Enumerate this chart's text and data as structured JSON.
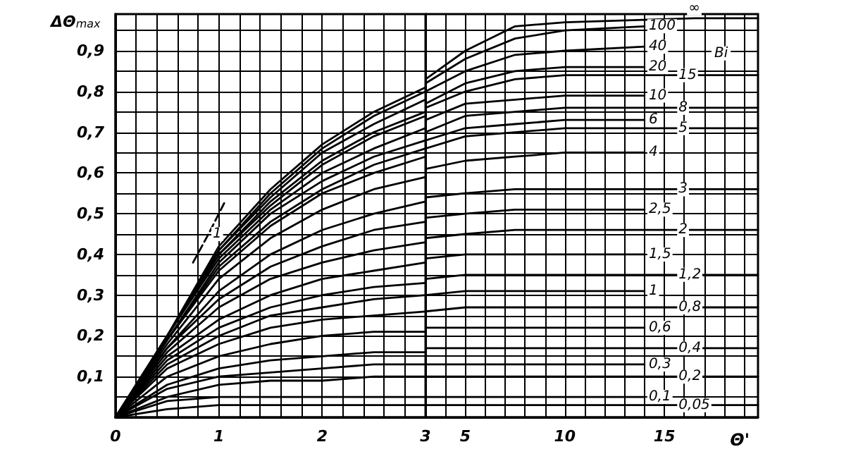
{
  "chart_data": [
    {
      "type": "line",
      "ylabel": "ΔΘ$_{max}$",
      "grid": true,
      "marker": "none",
      "line_style": "solid",
      "tick_labels": "xy",
      "xlim": [
        0,
        3
      ],
      "ylim": [
        0,
        0.99
      ],
      "xticks": [
        0,
        {
          "value": 0.2,
          "label": null
        },
        {
          "value": 0.4,
          "label": null
        },
        {
          "value": 0.6,
          "label": null
        },
        {
          "value": 0.8,
          "label": null
        },
        1,
        {
          "value": 1.2,
          "label": null
        },
        {
          "value": 1.4,
          "label": null
        },
        {
          "value": 1.6,
          "label": null
        },
        {
          "value": 1.8,
          "label": null
        },
        2,
        {
          "value": 2.2,
          "label": null
        },
        {
          "value": 2.4,
          "label": null
        },
        {
          "value": 2.6,
          "label": null
        },
        {
          "value": 2.8,
          "label": null
        },
        3
      ],
      "yticks": [
        {
          "value": 0,
          "label": null
        },
        {
          "value": 0.05,
          "label": null
        },
        {
          "value": 0.1,
          "label": "0,1"
        },
        {
          "value": 0.15,
          "label": null
        },
        {
          "value": 0.2,
          "label": "0,2"
        },
        {
          "value": 0.25,
          "label": null
        },
        {
          "value": 0.3,
          "label": "0,3"
        },
        {
          "value": 0.35,
          "label": null
        },
        {
          "value": 0.4,
          "label": "0,4"
        },
        {
          "value": 0.45,
          "label": null
        },
        {
          "value": 0.5,
          "label": "0,5"
        },
        {
          "value": 0.55,
          "label": null
        },
        {
          "value": 0.6,
          "label": "0,6"
        },
        {
          "value": 0.65,
          "label": null
        },
        {
          "value": 0.7,
          "label": "0,7"
        },
        {
          "value": 0.75,
          "label": null
        },
        {
          "value": 0.8,
          "label": "0,8"
        },
        {
          "value": 0.85,
          "label": null
        },
        {
          "value": 0.9,
          "label": "0,9"
        },
        {
          "value": 0.95,
          "label": null
        }
      ],
      "x": [
        0,
        0.5,
        1,
        1.5,
        2,
        2.5,
        3
      ],
      "series": [
        {
          "color": "#000000",
          "values": [
            0,
            0.2,
            0.42,
            0.56,
            0.67,
            0.75,
            0.81
          ]
        },
        {
          "color": "#000000",
          "values": [
            0,
            0.2,
            0.41,
            0.55,
            0.66,
            0.74,
            0.8
          ]
        },
        {
          "color": "#000000",
          "values": [
            0,
            0.2,
            0.41,
            0.54,
            0.65,
            0.72,
            0.78
          ]
        },
        {
          "color": "#000000",
          "values": [
            0,
            0.2,
            0.4,
            0.53,
            0.63,
            0.7,
            0.75
          ]
        },
        {
          "color": "#000000",
          "values": [
            0,
            0.2,
            0.4,
            0.52,
            0.62,
            0.69,
            0.74
          ]
        },
        {
          "color": "#000000",
          "values": [
            0,
            0.2,
            0.39,
            0.51,
            0.6,
            0.66,
            0.71
          ]
        },
        {
          "color": "#000000",
          "values": [
            0,
            0.19,
            0.38,
            0.5,
            0.58,
            0.64,
            0.68
          ]
        },
        {
          "color": "#000000",
          "values": [
            0,
            0.19,
            0.37,
            0.48,
            0.56,
            0.62,
            0.66
          ]
        },
        {
          "color": "#000000",
          "values": [
            0,
            0.19,
            0.36,
            0.47,
            0.55,
            0.6,
            0.64
          ]
        },
        {
          "color": "#000000",
          "values": [
            0,
            0.18,
            0.34,
            0.44,
            0.51,
            0.56,
            0.59
          ]
        },
        {
          "color": "#000000",
          "values": [
            0,
            0.17,
            0.31,
            0.4,
            0.46,
            0.5,
            0.53
          ]
        },
        {
          "color": "#000000",
          "values": [
            0,
            0.17,
            0.29,
            0.37,
            0.42,
            0.46,
            0.48
          ]
        },
        {
          "color": "#000000",
          "values": [
            0,
            0.16,
            0.27,
            0.34,
            0.38,
            0.41,
            0.43
          ]
        },
        {
          "color": "#000000",
          "values": [
            0,
            0.15,
            0.24,
            0.3,
            0.34,
            0.36,
            0.38
          ]
        },
        {
          "color": "#000000",
          "values": [
            0,
            0.14,
            0.22,
            0.27,
            0.3,
            0.32,
            0.33
          ]
        },
        {
          "color": "#000000",
          "values": [
            0,
            0.13,
            0.2,
            0.25,
            0.27,
            0.29,
            0.3
          ]
        },
        {
          "color": "#000000",
          "values": [
            0,
            0.12,
            0.18,
            0.22,
            0.24,
            0.25,
            0.26
          ]
        },
        {
          "color": "#000000",
          "values": [
            0,
            0.1,
            0.15,
            0.18,
            0.2,
            0.21,
            0.21
          ]
        },
        {
          "color": "#000000",
          "values": [
            0,
            0.08,
            0.12,
            0.14,
            0.15,
            0.16,
            0.16
          ]
        },
        {
          "color": "#000000",
          "values": [
            0,
            0.07,
            0.1,
            0.11,
            0.12,
            0.13,
            0.13
          ]
        },
        {
          "color": "#000000",
          "values": [
            0,
            0.05,
            0.08,
            0.09,
            0.09,
            0.1,
            0.1
          ]
        },
        {
          "color": "#000000",
          "values": [
            0,
            0.04,
            0.05,
            0.05,
            0.05,
            0.05,
            0.05
          ]
        },
        {
          "color": "#000000",
          "values": [
            0,
            0.02,
            0.03,
            0.03,
            0.03,
            0.03,
            0.03
          ]
        },
        {
          "name": "1",
          "color": "#000000",
          "line_style": "dashed",
          "x": [
            0.75,
            0.9,
            1.06
          ],
          "values": [
            0.38,
            0.45,
            0.53
          ]
        }
      ]
    },
    {
      "type": "line",
      "xlabel": "Θ'",
      "grid": true,
      "marker": "none",
      "line_style": "solid",
      "tick_labels": "x",
      "annotations": [
        "Bi"
      ],
      "xlim": [
        3,
        19.7
      ],
      "ylim": [
        0,
        0.99
      ],
      "xticks": [
        {
          "value": 4,
          "label": null
        },
        5,
        {
          "value": 6,
          "label": null
        },
        {
          "value": 7,
          "label": null
        },
        {
          "value": 8,
          "label": null
        },
        {
          "value": 9,
          "label": null
        },
        10,
        {
          "value": 11,
          "label": null
        },
        {
          "value": 12,
          "label": null
        },
        {
          "value": 13,
          "label": null
        },
        {
          "value": 14,
          "label": null
        },
        15,
        {
          "value": 16,
          "label": null
        },
        {
          "value": 17,
          "label": null
        },
        {
          "value": 18,
          "label": null
        },
        {
          "value": 19,
          "label": null
        }
      ],
      "yticks": [
        0,
        0.05,
        0.1,
        0.15,
        0.2,
        0.25,
        0.3,
        0.35,
        0.4,
        0.45,
        0.5,
        0.55,
        0.6,
        0.65,
        0.7,
        0.75,
        0.8,
        0.85,
        0.9,
        0.95
      ],
      "series": [
        {
          "name": "∞",
          "color": "#000000",
          "x": [
            3,
            5,
            7.5,
            10,
            16.5,
            19.7
          ],
          "values": [
            0.83,
            0.9,
            0.96,
            0.97,
            0.98,
            0.98
          ]
        },
        {
          "name": "100",
          "color": "#000000",
          "x": [
            3,
            5,
            7.5,
            10,
            14
          ],
          "values": [
            0.82,
            0.88,
            0.93,
            0.95,
            0.96
          ]
        },
        {
          "name": "40",
          "color": "#000000",
          "x": [
            3,
            5,
            7.5,
            10,
            14
          ],
          "values": [
            0.8,
            0.85,
            0.89,
            0.9,
            0.91
          ]
        },
        {
          "name": "20",
          "color": "#000000",
          "x": [
            3,
            5,
            7.5,
            10,
            14
          ],
          "values": [
            0.77,
            0.82,
            0.85,
            0.86,
            0.86
          ]
        },
        {
          "name": "15",
          "color": "#000000",
          "x": [
            3,
            5,
            7.5,
            10,
            15.5,
            19.7
          ],
          "values": [
            0.76,
            0.8,
            0.83,
            0.84,
            0.84,
            0.84
          ]
        },
        {
          "name": "10",
          "color": "#000000",
          "x": [
            3,
            5,
            7.5,
            10,
            14
          ],
          "values": [
            0.73,
            0.77,
            0.78,
            0.79,
            0.79
          ]
        },
        {
          "name": "8",
          "color": "#000000",
          "x": [
            3,
            5,
            7.5,
            10,
            15.5,
            19.7
          ],
          "values": [
            0.7,
            0.74,
            0.75,
            0.76,
            0.76,
            0.76
          ]
        },
        {
          "name": "6",
          "color": "#000000",
          "x": [
            3,
            5,
            7.5,
            10,
            14
          ],
          "values": [
            0.68,
            0.71,
            0.72,
            0.73,
            0.73
          ]
        },
        {
          "name": "5",
          "color": "#000000",
          "x": [
            3,
            5,
            7.5,
            10,
            15.5,
            19.7
          ],
          "values": [
            0.66,
            0.69,
            0.7,
            0.71,
            0.71,
            0.71
          ]
        },
        {
          "name": "4",
          "color": "#000000",
          "x": [
            3,
            5,
            7.5,
            10,
            14
          ],
          "values": [
            0.61,
            0.63,
            0.64,
            0.65,
            0.65
          ]
        },
        {
          "name": "3",
          "color": "#000000",
          "x": [
            3,
            5,
            7.5,
            10,
            15.5,
            19.7
          ],
          "values": [
            0.54,
            0.55,
            0.56,
            0.56,
            0.56,
            0.56
          ]
        },
        {
          "name": "2,5",
          "color": "#000000",
          "x": [
            3,
            5,
            7.5,
            10,
            14
          ],
          "values": [
            0.49,
            0.5,
            0.51,
            0.51,
            0.51
          ]
        },
        {
          "name": "2",
          "color": "#000000",
          "x": [
            3,
            5,
            7.5,
            10,
            15.5,
            19.7
          ],
          "values": [
            0.44,
            0.45,
            0.46,
            0.46,
            0.46,
            0.46
          ]
        },
        {
          "name": "1,5",
          "color": "#000000",
          "x": [
            3,
            5,
            7.5,
            10,
            14
          ],
          "values": [
            0.39,
            0.4,
            0.4,
            0.4,
            0.4
          ]
        },
        {
          "name": "1,2",
          "color": "#000000",
          "x": [
            3,
            5,
            7.5,
            10,
            15.5,
            19.7
          ],
          "values": [
            0.34,
            0.35,
            0.35,
            0.35,
            0.35,
            0.35
          ]
        },
        {
          "name": "1",
          "color": "#000000",
          "x": [
            3,
            5,
            7.5,
            10,
            14
          ],
          "values": [
            0.3,
            0.31,
            0.31,
            0.31,
            0.31
          ]
        },
        {
          "name": "0,8",
          "color": "#000000",
          "x": [
            3,
            5,
            7.5,
            10,
            15.5,
            19.7
          ],
          "values": [
            0.26,
            0.27,
            0.27,
            0.27,
            0.27,
            0.27
          ]
        },
        {
          "name": "0,6",
          "color": "#000000",
          "x": [
            3,
            5,
            7.5,
            10,
            14
          ],
          "values": [
            0.22,
            0.22,
            0.22,
            0.22,
            0.22
          ]
        },
        {
          "name": "0,4",
          "color": "#000000",
          "x": [
            3,
            5,
            7.5,
            10,
            15.5,
            19.7
          ],
          "values": [
            0.17,
            0.17,
            0.17,
            0.17,
            0.17,
            0.17
          ]
        },
        {
          "name": "0,3",
          "color": "#000000",
          "x": [
            3,
            5,
            7.5,
            10,
            14
          ],
          "values": [
            0.13,
            0.13,
            0.13,
            0.13,
            0.13
          ]
        },
        {
          "name": "0,2",
          "color": "#000000",
          "x": [
            3,
            5,
            7.5,
            10,
            15.5,
            19.7
          ],
          "values": [
            0.1,
            0.1,
            0.1,
            0.1,
            0.1,
            0.1
          ]
        },
        {
          "name": "0,1",
          "color": "#000000",
          "x": [
            3,
            5,
            7.5,
            10,
            14
          ],
          "values": [
            0.05,
            0.05,
            0.05,
            0.05,
            0.05
          ]
        },
        {
          "name": "0,05",
          "color": "#000000",
          "x": [
            3,
            5,
            7.5,
            10,
            15.5,
            19.7
          ],
          "values": [
            0.03,
            0.03,
            0.03,
            0.03,
            0.03,
            0.03
          ]
        }
      ]
    }
  ]
}
